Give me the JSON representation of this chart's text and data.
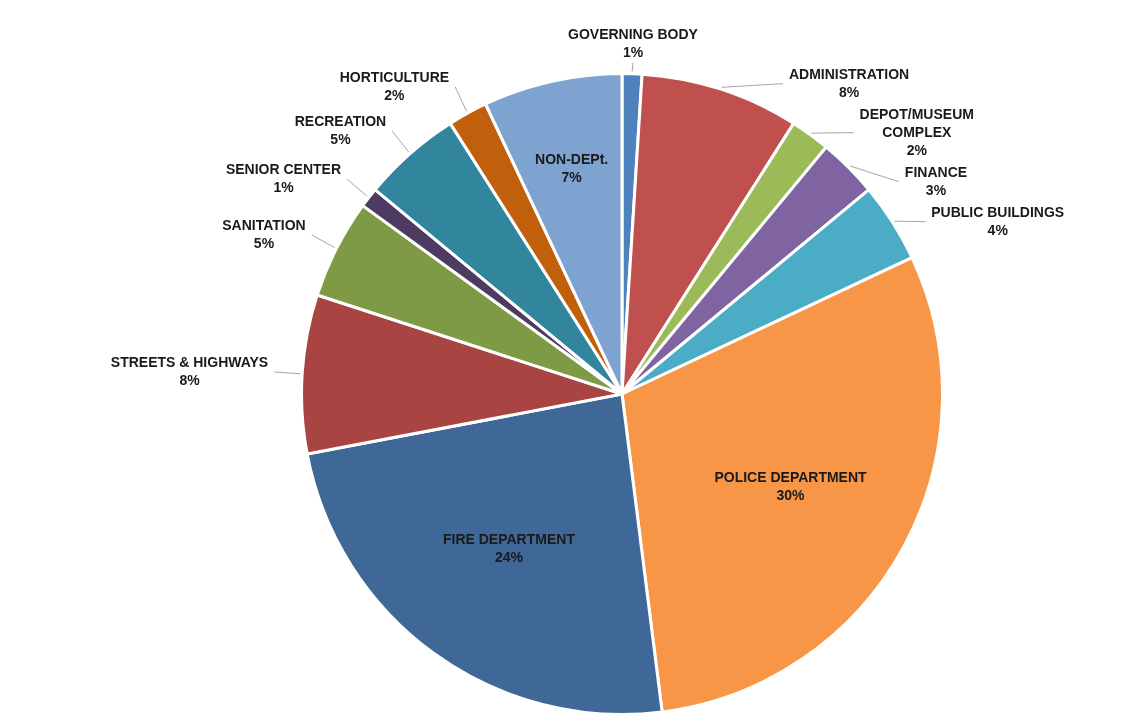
{
  "chart_data": {
    "type": "pie",
    "categories": [
      "GOVERNING BODY",
      "ADMINISTRATION",
      "DEPOT/MUSEUM COMPLEX",
      "FINANCE",
      "PUBLIC BUILDINGS",
      "POLICE DEPARTMENT",
      "FIRE DEPARTMENT",
      "STREETS & HIGHWAYS",
      "SANITATION",
      "SENIOR CENTER",
      "RECREATION",
      "HORTICULTURE",
      "NON-DEPt."
    ],
    "values": [
      1,
      8,
      2,
      3,
      4,
      30,
      24,
      8,
      5,
      1,
      5,
      2,
      7
    ],
    "value_labels": [
      "1%",
      "8%",
      "2%",
      "3%",
      "4%",
      "30%",
      "24%",
      "8%",
      "5%",
      "1%",
      "5%",
      "2%",
      "7%"
    ],
    "colors": [
      "#4f81bd",
      "#c0504d",
      "#9bbb59",
      "#8064a2",
      "#4bacc6",
      "#f79646",
      "#3f6797",
      "#a84542",
      "#7f9a44",
      "#4d3b62",
      "#31859c",
      "#c0600d",
      "#7fa3d0"
    ],
    "legend": false
  }
}
